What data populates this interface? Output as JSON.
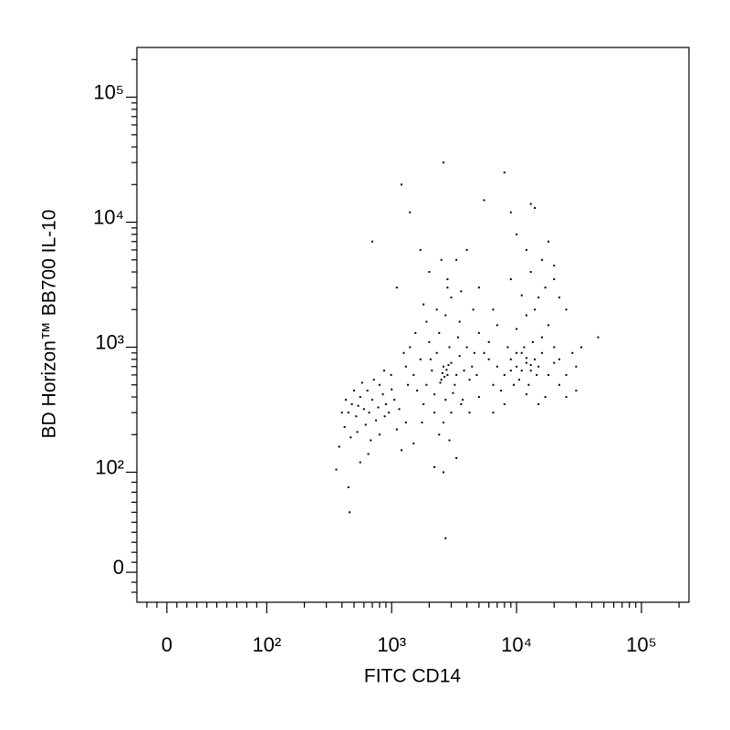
{
  "chart_data": {
    "type": "scatter",
    "scale": "biexponential",
    "xlabel": "FITC CD14",
    "ylabel": "BD Horizon™ BB700 IL-10",
    "color": "#000000",
    "xlim": [
      -30,
      240000
    ],
    "ylim": [
      -30,
      250000
    ],
    "xticks": [
      0,
      {
        "value": 100,
        "label": "10²"
      },
      {
        "value": 1000,
        "label": "10³"
      },
      {
        "value": 10000,
        "label": "10⁴"
      },
      {
        "value": 100000,
        "label": "10⁵"
      }
    ],
    "yticks": [
      0,
      {
        "value": 100,
        "label": "10²"
      },
      {
        "value": 1000,
        "label": "10³"
      },
      {
        "value": 10000,
        "label": "10⁴"
      },
      {
        "value": 100000,
        "label": "10⁵"
      }
    ],
    "xminorticks": [
      -20,
      -10,
      10,
      20,
      30,
      40,
      50,
      60,
      70,
      80,
      90,
      200,
      300,
      400,
      500,
      600,
      700,
      800,
      900,
      2000,
      3000,
      4000,
      5000,
      6000,
      7000,
      8000,
      9000,
      20000,
      30000,
      40000,
      50000,
      60000,
      70000,
      80000,
      90000,
      200000
    ],
    "yminorticks": [
      -20,
      -10,
      10,
      20,
      30,
      40,
      50,
      60,
      70,
      80,
      90,
      200,
      300,
      400,
      500,
      600,
      700,
      800,
      900,
      2000,
      3000,
      4000,
      5000,
      6000,
      7000,
      8000,
      9000,
      20000,
      30000,
      40000,
      50000,
      60000,
      70000,
      80000,
      90000,
      200000
    ],
    "x": [
      380,
      420,
      450,
      480,
      520,
      560,
      600,
      640,
      700,
      750,
      800,
      850,
      900,
      950,
      1000,
      470,
      530,
      620,
      680,
      400,
      430,
      500,
      580,
      720,
      780,
      880,
      360,
      450,
      460,
      560,
      650,
      800,
      1100,
      1200,
      990,
      1050,
      1150,
      870,
      660,
      540,
      1300,
      1500,
      1700,
      1900,
      2100,
      2300,
      2500,
      2600,
      2800,
      3000,
      3200,
      3500,
      3800,
      4200,
      4600,
      1400,
      1600,
      1800,
      2000,
      2200,
      2400,
      2700,
      2900,
      3100,
      3400,
      3700,
      4000,
      4400,
      4800,
      1250,
      1350,
      2050,
      2550,
      2650,
      2750,
      2450,
      2850,
      3300,
      1550,
      1900,
      2300,
      2700,
      3000,
      3500,
      2200,
      2600,
      3000,
      3600,
      1750,
      2400,
      2900,
      3300,
      2200,
      2600,
      1500,
      1300,
      4200,
      5000,
      2800,
      1800,
      7000,
      8000,
      9000,
      10000,
      11000,
      12000,
      13000,
      14000,
      15000,
      16000,
      18000,
      20000,
      22000,
      25000,
      9500,
      10500,
      11500,
      12500,
      13500,
      8500,
      7500,
      6500,
      6000,
      11000,
      12000,
      13000,
      14500,
      9000,
      10000,
      16000,
      18000,
      20000,
      22000,
      28000,
      30000,
      33000,
      45000,
      30000,
      25000,
      17000,
      15000,
      12000,
      8000,
      6500,
      10000,
      12000,
      14000,
      15000,
      17000,
      11000,
      9000,
      13000,
      16000,
      20000,
      22000,
      25000,
      18000,
      12000,
      10000,
      9000,
      13000,
      8000,
      14000,
      20000,
      1200,
      1400,
      1700,
      2000,
      2500,
      2800,
      3300,
      3600,
      2600,
      700,
      1100,
      4000,
      5500,
      5000,
      6500,
      7000,
      5000,
      5500,
      6000,
      4500,
      2700
    ],
    "values": [
      160,
      230,
      300,
      350,
      280,
      400,
      320,
      450,
      380,
      260,
      500,
      420,
      350,
      300,
      460,
      190,
      210,
      240,
      180,
      300,
      380,
      450,
      520,
      550,
      330,
      280,
      105,
      85,
      60,
      120,
      140,
      200,
      220,
      150,
      600,
      380,
      320,
      650,
      300,
      340,
      700,
      600,
      800,
      500,
      650,
      900,
      550,
      700,
      600,
      750,
      500,
      850,
      650,
      550,
      900,
      1000,
      450,
      350,
      1100,
      420,
      1300,
      380,
      1000,
      430,
      1200,
      380,
      1000,
      700,
      600,
      900,
      500,
      800,
      620,
      580,
      660,
      520,
      720,
      600,
      1300,
      1600,
      2000,
      1800,
      2500,
      1600,
      300,
      250,
      300,
      350,
      250,
      200,
      180,
      130,
      110,
      100,
      170,
      250,
      300,
      400,
      3000,
      2200,
      700,
      600,
      800,
      700,
      900,
      750,
      650,
      800,
      700,
      900,
      600,
      750,
      500,
      600,
      500,
      550,
      1000,
      500,
      1100,
      1000,
      450,
      500,
      800,
      650,
      820,
      720,
      600,
      650,
      900,
      1200,
      1500,
      1000,
      800,
      900,
      700,
      1000,
      1200,
      450,
      400,
      400,
      350,
      420,
      350,
      300,
      1400,
      1800,
      2000,
      2500,
      3000,
      2600,
      3500,
      4000,
      5000,
      3500,
      2500,
      2000,
      7000,
      6000,
      8000,
      12000,
      14000,
      25000,
      13000,
      4500,
      20000,
      12000,
      6000,
      4000,
      5000,
      3500,
      5000,
      2800,
      30000,
      7000,
      3000,
      6000,
      15000,
      3000,
      2000,
      1500,
      1300,
      900,
      1100,
      2000,
      34
    ]
  }
}
